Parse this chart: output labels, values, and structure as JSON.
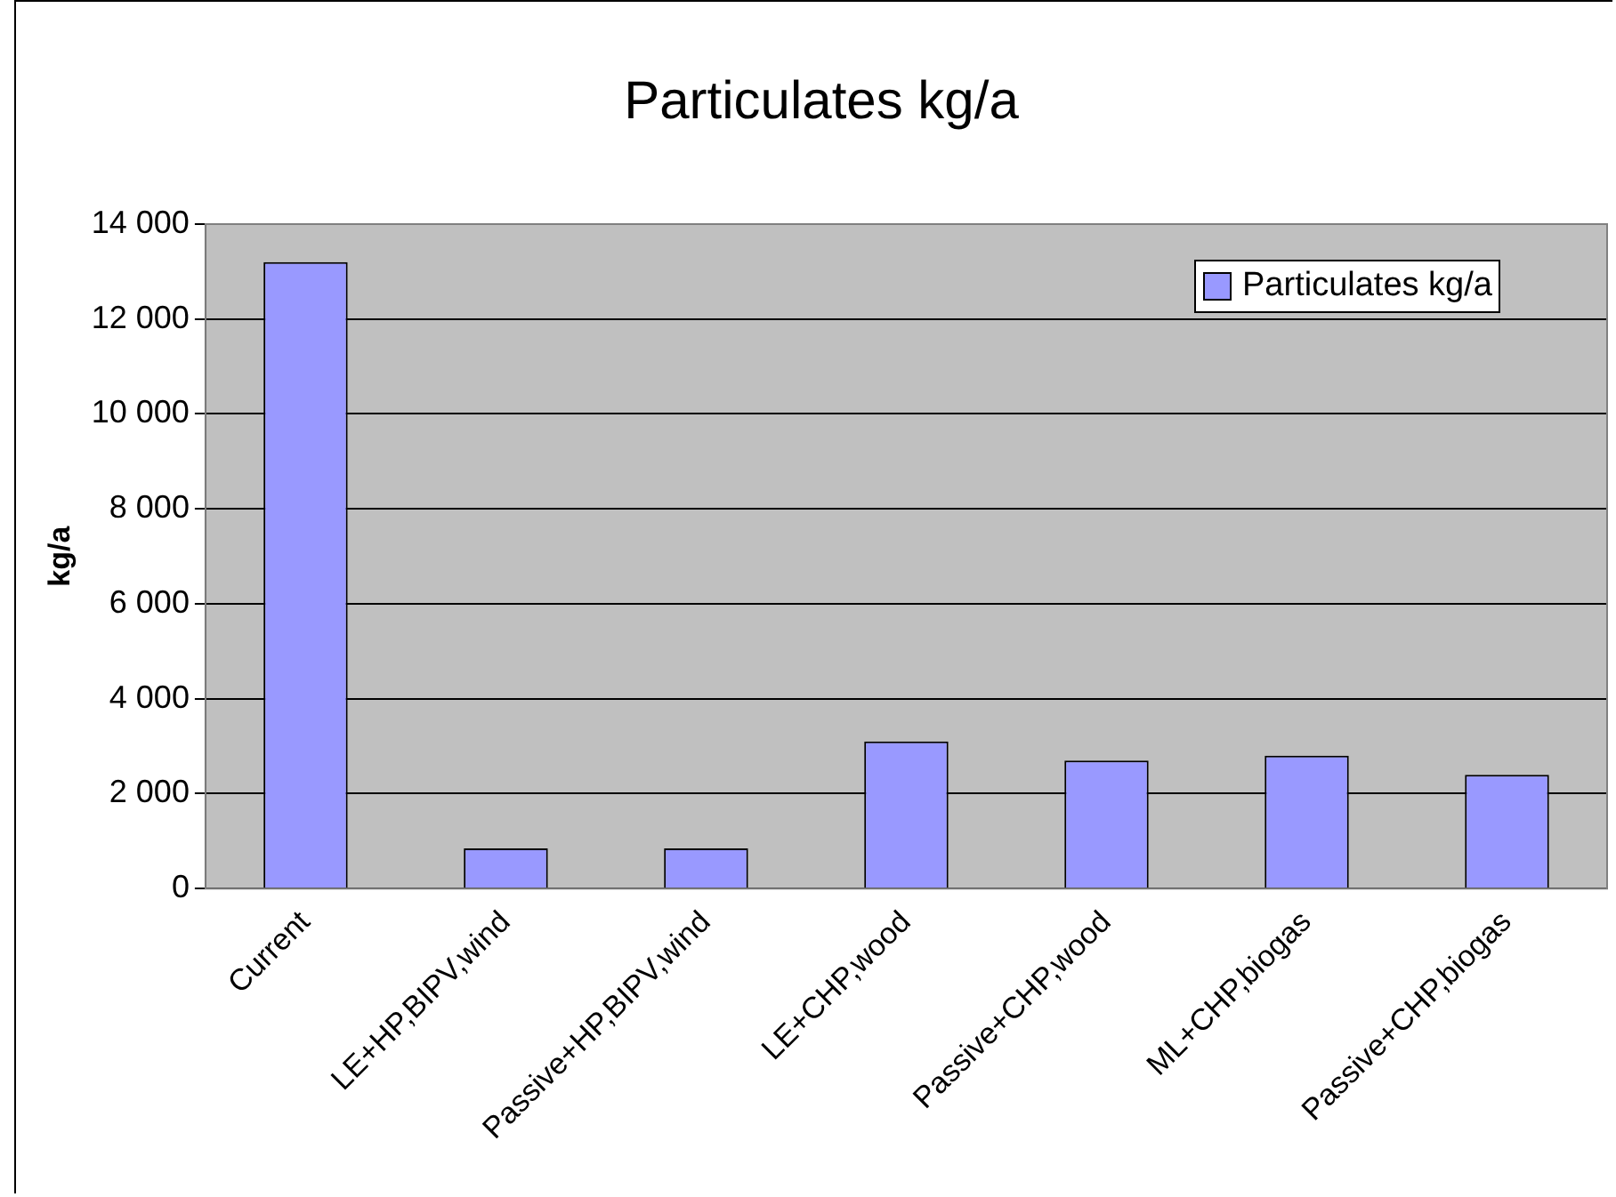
{
  "chart_data": {
    "type": "bar",
    "title": "Particulates kg/a",
    "ylabel": "kg/a",
    "categories": [
      "Current",
      "LE+HP,BIPV,wind",
      "Passive+HP,BIPV,wind",
      "LE+CHP,wood",
      "Passive+CHP,wood",
      "ML+CHP,biogas",
      "Passive+CHP,biogas"
    ],
    "series": [
      {
        "name": "Particulates kg/a",
        "color": "#9999ff",
        "values": [
          13200,
          850,
          850,
          3100,
          2700,
          2800,
          2400
        ]
      }
    ],
    "ylim": [
      0,
      14000
    ],
    "yticks": [
      0,
      {
        "value": 2000,
        "label": "2 000"
      },
      {
        "value": 4000,
        "label": "4 000"
      },
      {
        "value": 6000,
        "label": "6 000"
      },
      {
        "value": 8000,
        "label": "8 000"
      },
      {
        "value": 10000,
        "label": "10 000"
      },
      {
        "value": 12000,
        "label": "12 000"
      },
      {
        "value": 14000,
        "label": "14 000"
      }
    ],
    "grid": "y",
    "legend": "top right"
  }
}
